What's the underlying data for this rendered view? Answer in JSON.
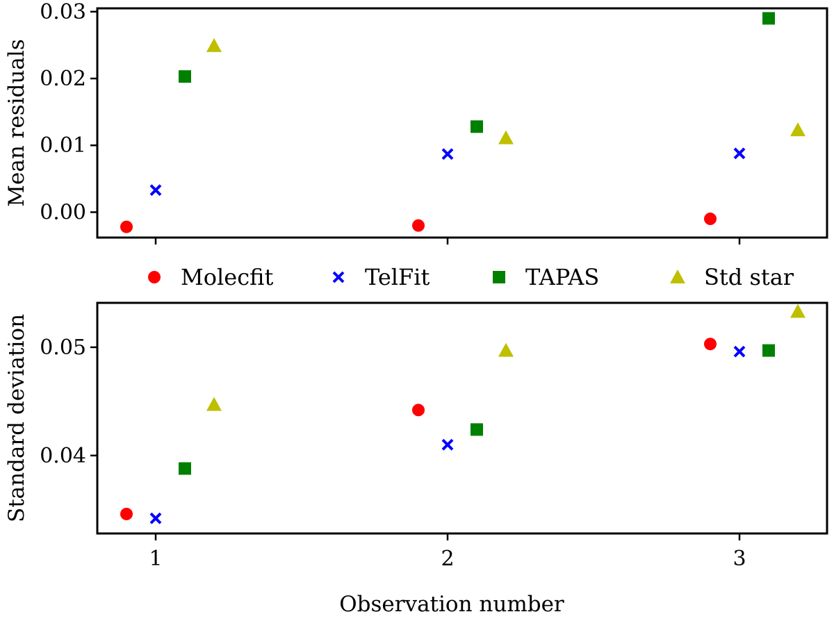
{
  "chart_data": [
    {
      "type": "scatter",
      "panel": "top",
      "ylabel": "Mean residuals",
      "xlabel": "",
      "xlim": [
        0.8,
        3.3
      ],
      "ylim": [
        -0.0038,
        0.0305
      ],
      "xticks": [
        1,
        2,
        3
      ],
      "yticks": [
        0.0,
        0.01,
        0.02,
        0.03
      ],
      "ytick_labels": [
        "0.00",
        "0.01",
        "0.02",
        "0.03"
      ],
      "grid": false,
      "series": [
        {
          "name": "Molecfit",
          "marker": "circle",
          "color": "#ff0000",
          "x": [
            0.9,
            1.9,
            2.9
          ],
          "y": [
            -0.0022,
            -0.002,
            -0.001
          ]
        },
        {
          "name": "TelFit",
          "marker": "x",
          "color": "#0000ff",
          "x": [
            1.0,
            2.0,
            3.0
          ],
          "y": [
            0.0033,
            0.0087,
            0.0088
          ]
        },
        {
          "name": "TAPAS",
          "marker": "square",
          "color": "#008000",
          "x": [
            1.1,
            2.1,
            3.1
          ],
          "y": [
            0.0203,
            0.0128,
            0.029
          ]
        },
        {
          "name": "Std star",
          "marker": "triangle",
          "color": "#bfbf00",
          "x": [
            1.2,
            2.2,
            3.2
          ],
          "y": [
            0.0249,
            0.0111,
            0.0123
          ]
        }
      ]
    },
    {
      "type": "scatter",
      "panel": "bottom",
      "ylabel": "Standard deviation",
      "xlabel": "Observation number",
      "xlim": [
        0.8,
        3.3
      ],
      "ylim": [
        0.0328,
        0.0541
      ],
      "xticks": [
        1,
        2,
        3
      ],
      "xtick_labels": [
        "1",
        "2",
        "3"
      ],
      "yticks": [
        0.04,
        0.05
      ],
      "ytick_labels": [
        "0.04",
        "0.05"
      ],
      "grid": false,
      "series": [
        {
          "name": "Molecfit",
          "marker": "circle",
          "color": "#ff0000",
          "x": [
            0.9,
            1.9,
            2.9
          ],
          "y": [
            0.0346,
            0.0442,
            0.0503
          ]
        },
        {
          "name": "TelFit",
          "marker": "x",
          "color": "#0000ff",
          "x": [
            1.0,
            2.0,
            3.0
          ],
          "y": [
            0.0342,
            0.041,
            0.0496
          ]
        },
        {
          "name": "TAPAS",
          "marker": "square",
          "color": "#008000",
          "x": [
            1.1,
            2.1,
            3.1
          ],
          "y": [
            0.0388,
            0.0424,
            0.0497
          ]
        },
        {
          "name": "Std star",
          "marker": "triangle",
          "color": "#bfbf00",
          "x": [
            1.2,
            2.2,
            3.2
          ],
          "y": [
            0.0447,
            0.0497,
            0.0533
          ]
        }
      ]
    }
  ],
  "legend": {
    "placement": "between-panels",
    "entries": [
      {
        "name": "Molecfit",
        "marker": "circle",
        "color": "#ff0000"
      },
      {
        "name": "TelFit",
        "marker": "x",
        "color": "#0000ff"
      },
      {
        "name": "TAPAS",
        "marker": "square",
        "color": "#008000"
      },
      {
        "name": "Std star",
        "marker": "triangle",
        "color": "#bfbf00"
      }
    ]
  }
}
